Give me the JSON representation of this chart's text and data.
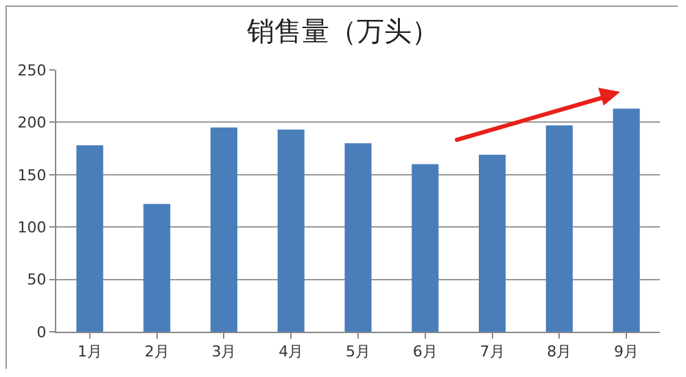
{
  "chart_data": {
    "type": "bar",
    "title": "销售量（万头）",
    "categories": [
      "1月",
      "2月",
      "3月",
      "4月",
      "5月",
      "6月",
      "7月",
      "8月",
      "9月"
    ],
    "values": [
      178,
      122,
      195,
      193,
      180,
      160,
      169,
      197,
      213
    ],
    "color": "#4a7ebb",
    "ylim": [
      0,
      250
    ],
    "yticks": [
      0,
      50,
      100,
      150,
      200,
      250
    ],
    "grid": "y"
  }
}
